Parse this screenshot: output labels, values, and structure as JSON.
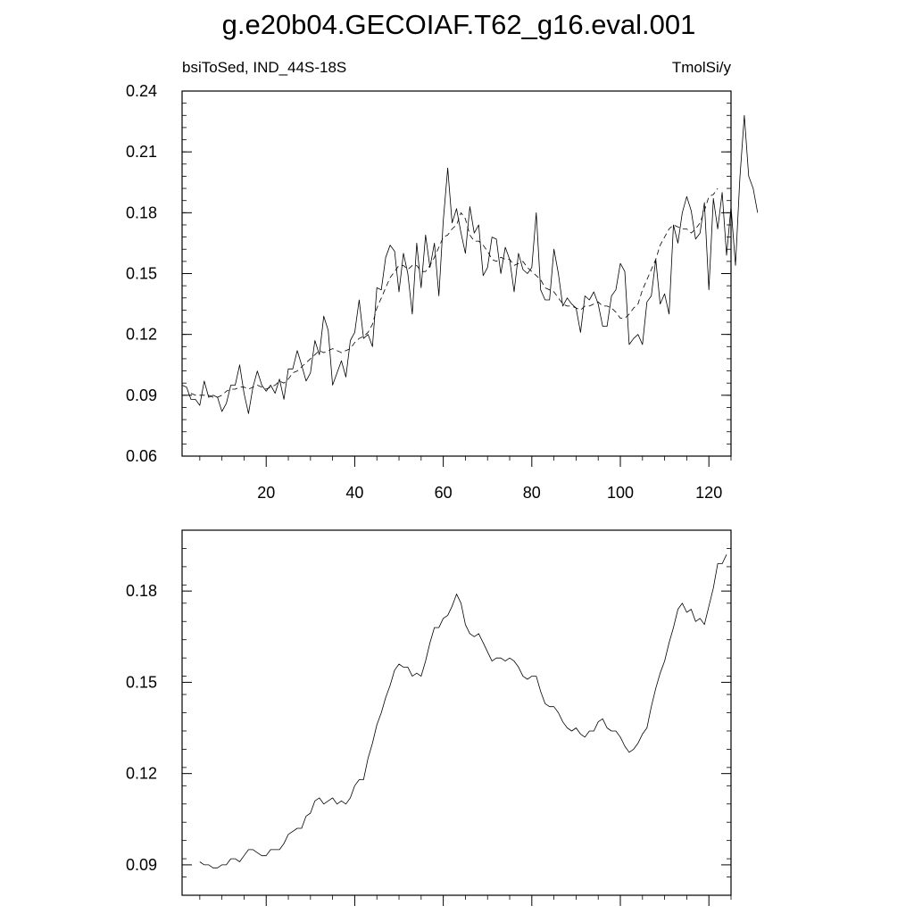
{
  "header": {
    "title": "g.e20b04.GECOIAF.T62_g16.eval.001",
    "left_label": "bsiToSed, IND_44S-18S",
    "right_label": "TmolSi/y"
  },
  "chart_data": [
    {
      "type": "line",
      "panel": "top",
      "xlim": [
        1,
        125
      ],
      "ylim": [
        0.06,
        0.24
      ],
      "xticks": [
        20,
        40,
        60,
        80,
        100,
        120
      ],
      "xtick_labels": [
        "20",
        "40",
        "60",
        "80",
        "100",
        "120"
      ],
      "yticks": [
        0.06,
        0.09,
        0.12,
        0.15,
        0.18,
        0.21,
        0.24
      ],
      "ytick_labels": [
        "0.06",
        "0.09",
        "0.12",
        "0.15",
        "0.18",
        "0.21",
        "0.24"
      ],
      "series": [
        {
          "style": "solid",
          "x_start": 1,
          "values": [
            0.095,
            0.094,
            0.088,
            0.088,
            0.085,
            0.097,
            0.089,
            0.09,
            0.089,
            0.082,
            0.086,
            0.095,
            0.095,
            0.105,
            0.091,
            0.081,
            0.094,
            0.102,
            0.095,
            0.092,
            0.095,
            0.091,
            0.098,
            0.088,
            0.103,
            0.103,
            0.112,
            0.105,
            0.097,
            0.101,
            0.117,
            0.11,
            0.129,
            0.122,
            0.095,
            0.101,
            0.107,
            0.099,
            0.117,
            0.121,
            0.137,
            0.118,
            0.12,
            0.114,
            0.143,
            0.142,
            0.158,
            0.164,
            0.161,
            0.141,
            0.16,
            0.15,
            0.13,
            0.165,
            0.143,
            0.169,
            0.153,
            0.165,
            0.139,
            0.176,
            0.202,
            0.175,
            0.182,
            0.17,
            0.16,
            0.183,
            0.17,
            0.174,
            0.149,
            0.153,
            0.168,
            0.167,
            0.15,
            0.163,
            0.157,
            0.141,
            0.16,
            0.152,
            0.15,
            0.153,
            0.18,
            0.142,
            0.137,
            0.137,
            0.162,
            0.15,
            0.134,
            0.138,
            0.135,
            0.133,
            0.121,
            0.139,
            0.137,
            0.141,
            0.135,
            0.124,
            0.124,
            0.139,
            0.142,
            0.155,
            0.151,
            0.115,
            0.118,
            0.12,
            0.115,
            0.136,
            0.139,
            0.157,
            0.135,
            0.14,
            0.13,
            0.174,
            0.165,
            0.18,
            0.188,
            0.181,
            0.167,
            0.17,
            0.185,
            0.142,
            0.187,
            0.172,
            0.19,
            0.159,
            0.183,
            0.154,
            0.197,
            0.228,
            0.198,
            0.192,
            0.18
          ]
        },
        {
          "style": "dashed",
          "x_start": 3,
          "values": [
            0.091,
            0.09,
            0.09,
            0.09,
            0.09,
            0.089,
            0.089,
            0.09,
            0.092,
            0.093,
            0.093,
            0.094,
            0.094,
            0.093,
            0.094,
            0.095,
            0.094,
            0.093,
            0.094,
            0.095,
            0.097,
            0.096,
            0.098,
            0.101,
            0.102,
            0.104,
            0.106,
            0.108,
            0.11,
            0.112,
            0.111,
            0.112,
            0.113,
            0.112,
            0.111,
            0.112,
            0.113,
            0.116,
            0.118,
            0.119,
            0.121,
            0.125,
            0.133,
            0.138,
            0.143,
            0.148,
            0.151,
            0.154,
            0.154,
            0.152,
            0.154,
            0.154,
            0.151,
            0.151,
            0.154,
            0.158,
            0.163,
            0.168,
            0.169,
            0.172,
            0.174,
            0.18,
            0.177,
            0.169,
            0.166,
            0.166,
            0.164,
            0.161,
            0.157,
            0.156,
            0.158,
            0.157,
            0.157,
            0.154,
            0.155,
            0.156,
            0.153,
            0.151,
            0.149,
            0.147,
            0.143,
            0.142,
            0.141,
            0.138,
            0.135,
            0.134,
            0.134,
            0.133,
            0.132,
            0.134,
            0.134,
            0.135,
            0.136,
            0.134,
            0.134,
            0.133,
            0.131,
            0.128,
            0.128,
            0.13,
            0.133,
            0.135,
            0.142,
            0.147,
            0.152,
            0.157,
            0.164,
            0.168,
            0.172,
            0.174,
            0.173,
            0.172,
            0.172,
            0.17,
            0.172,
            0.175,
            0.181,
            0.188,
            0.189,
            0.192
          ]
        }
      ]
    },
    {
      "type": "line",
      "panel": "bottom",
      "xlim": [
        1,
        125
      ],
      "ylim": [
        0.08,
        0.2
      ],
      "xticks": [
        20,
        40,
        60,
        80,
        100,
        120
      ],
      "yticks": [
        0.09,
        0.12,
        0.15,
        0.18
      ],
      "ytick_labels": [
        "0.09",
        "0.12",
        "0.15",
        "0.18"
      ],
      "series": [
        {
          "style": "solid",
          "x_start": 5,
          "values": [
            0.091,
            0.09,
            0.09,
            0.089,
            0.089,
            0.09,
            0.09,
            0.092,
            0.092,
            0.091,
            0.093,
            0.095,
            0.095,
            0.094,
            0.093,
            0.093,
            0.095,
            0.095,
            0.095,
            0.097,
            0.1,
            0.101,
            0.102,
            0.102,
            0.106,
            0.107,
            0.111,
            0.112,
            0.11,
            0.111,
            0.112,
            0.11,
            0.111,
            0.11,
            0.112,
            0.116,
            0.118,
            0.118,
            0.125,
            0.13,
            0.136,
            0.14,
            0.145,
            0.149,
            0.154,
            0.156,
            0.155,
            0.155,
            0.152,
            0.153,
            0.152,
            0.157,
            0.163,
            0.168,
            0.168,
            0.171,
            0.172,
            0.175,
            0.179,
            0.176,
            0.169,
            0.166,
            0.165,
            0.166,
            0.163,
            0.16,
            0.157,
            0.158,
            0.158,
            0.157,
            0.158,
            0.157,
            0.155,
            0.152,
            0.151,
            0.152,
            0.152,
            0.147,
            0.143,
            0.142,
            0.142,
            0.14,
            0.137,
            0.135,
            0.134,
            0.135,
            0.133,
            0.132,
            0.134,
            0.134,
            0.137,
            0.138,
            0.135,
            0.134,
            0.134,
            0.132,
            0.129,
            0.127,
            0.128,
            0.13,
            0.133,
            0.135,
            0.142,
            0.148,
            0.153,
            0.157,
            0.163,
            0.168,
            0.174,
            0.176,
            0.173,
            0.174,
            0.17,
            0.171,
            0.169,
            0.175,
            0.181,
            0.189,
            0.189,
            0.192
          ]
        }
      ]
    }
  ]
}
